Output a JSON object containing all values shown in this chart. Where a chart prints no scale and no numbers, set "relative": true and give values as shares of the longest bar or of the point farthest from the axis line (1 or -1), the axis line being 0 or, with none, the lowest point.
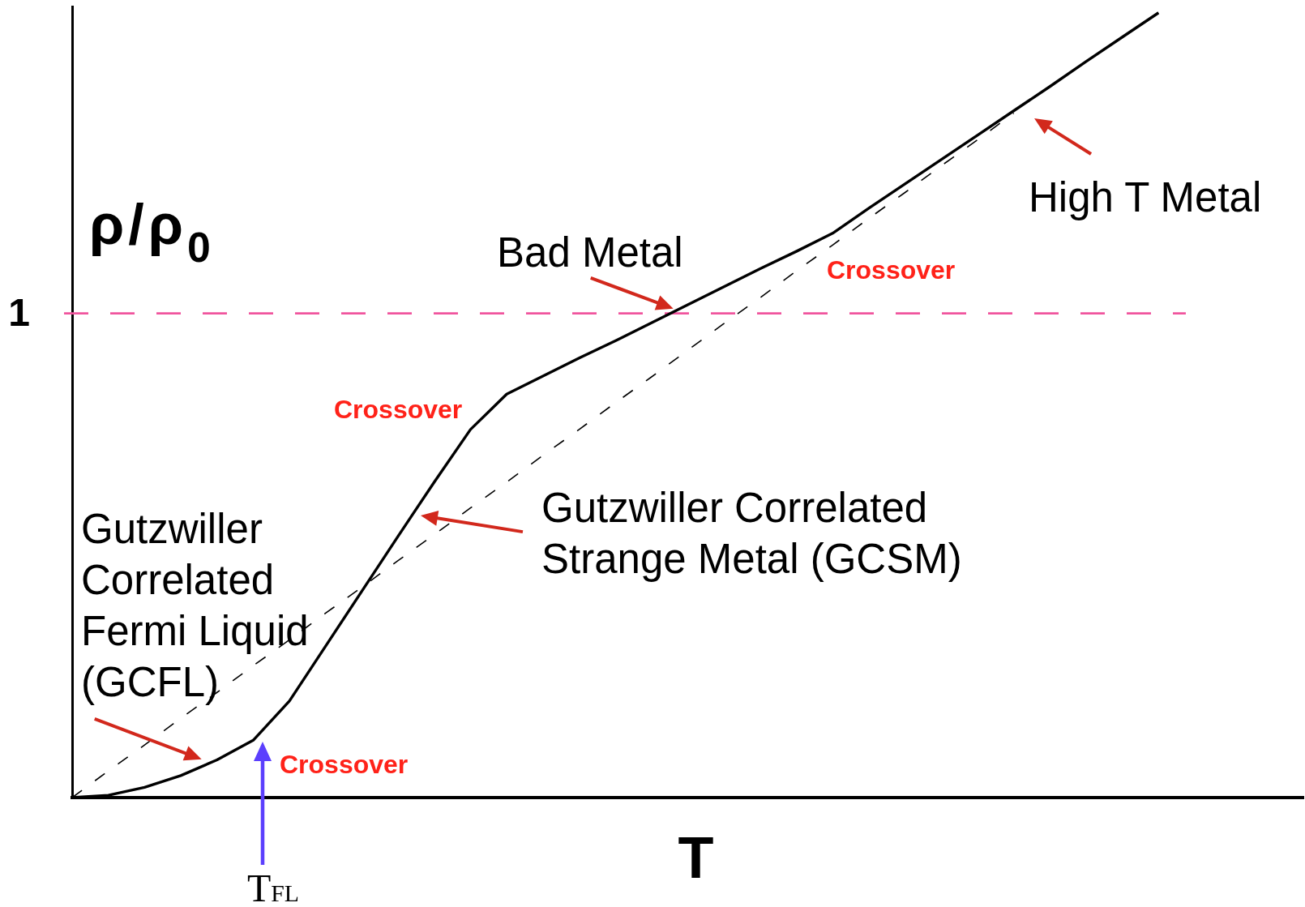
{
  "chart_data": {
    "type": "line",
    "relative": true,
    "xlabel": "T",
    "ylabel": "ρ/ρ$_{0}$",
    "marker": "none",
    "line_style": "solid",
    "categories": [
      null,
      null,
      null,
      null,
      null,
      null,
      null,
      null,
      null,
      null,
      null,
      null,
      null,
      null,
      null,
      null,
      null,
      null,
      null,
      null,
      null,
      null,
      null,
      null,
      null,
      null,
      null,
      null,
      null,
      null,
      null,
      null,
      null,
      null,
      null
    ],
    "series": [
      {
        "color": "#000000",
        "values": [
          0,
          0.003,
          0.013,
          0.028,
          0.048,
          0.073,
          0.123,
          0.193,
          0.263,
          0.333,
          0.402,
          0.469,
          0.514,
          0.537,
          0.56,
          0.582,
          0.605,
          0.628,
          0.651,
          0.674,
          0.696,
          0.719,
          0.751,
          0.782,
          0.813,
          0.844,
          0.875,
          0.906,
          0.938,
          0.969,
          1,
          null,
          null,
          null,
          null
        ]
      },
      {
        "color": "#000000",
        "line_style": "dashed",
        "values": [
          0,
          0.034,
          0.067,
          0.101,
          0.134,
          0.168,
          0.201,
          0.235,
          0.268,
          0.302,
          0.335,
          0.369,
          0.402,
          0.436,
          0.469,
          0.503,
          0.536,
          0.57,
          0.604,
          0.637,
          0.671,
          0.704,
          0.738,
          0.771,
          0.805,
          0.838,
          0.872,
          null,
          null,
          null,
          null,
          null,
          null,
          null,
          null
        ]
      }
    ],
    "ref_lines": [
      {
        "axis": "y",
        "value": 0.617,
        "label": "1",
        "color": "#f0559e",
        "line_style": "dashed"
      }
    ],
    "annotations": [
      "High T Metal",
      "Bad Metal",
      "Crossover",
      "Crossover",
      "Gutzwiller Correlated Strange Metal (GCSM)",
      "Gutzwiller Correlated Fermi Liquid (GCFL)",
      "Crossover",
      "T$_{FL}$"
    ]
  }
}
